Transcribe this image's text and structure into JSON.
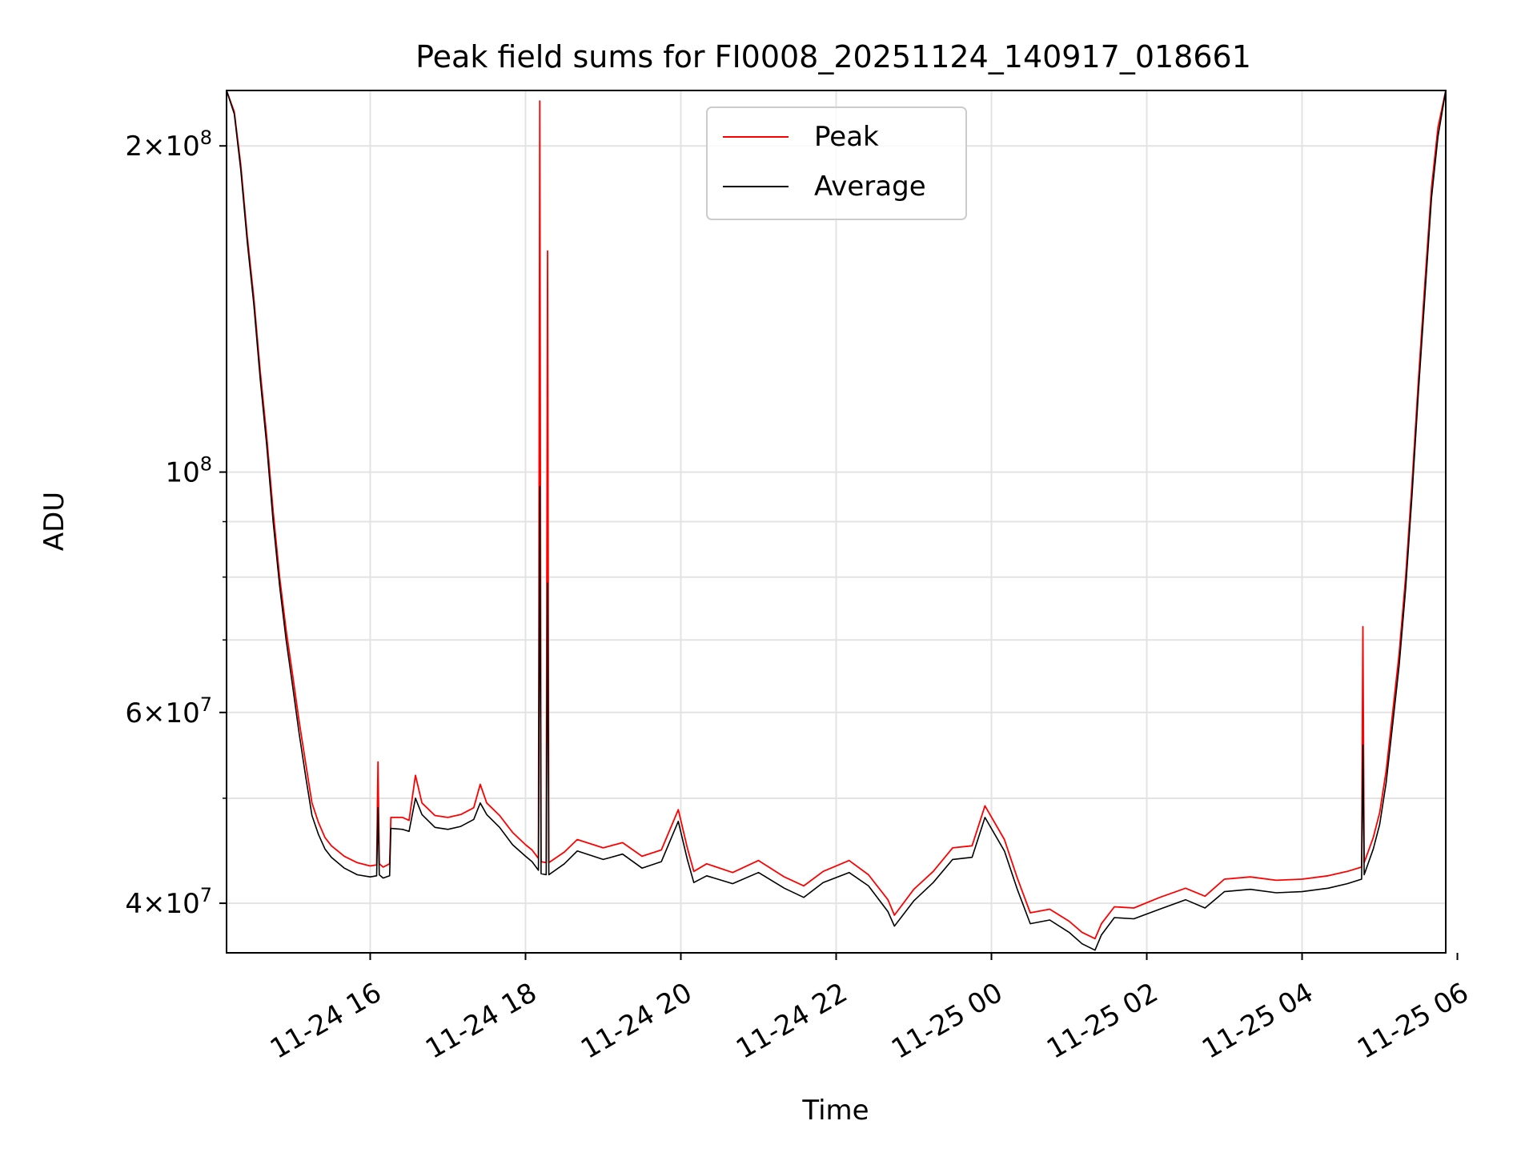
{
  "chart_data": {
    "type": "line",
    "title": "Peak field sums for FI0008_20251124_140917_018661",
    "xlabel": "Time",
    "ylabel": "ADU",
    "y_scale": "log",
    "ylim": [
      36000000,
      225000000
    ],
    "xlim": [
      "2025-11-24 14:09",
      "2025-11-25 05:51"
    ],
    "grid": true,
    "legend_position": "upper center",
    "x_ticks": [
      {
        "value": "2025-11-24 16:00",
        "label": "11-24 16"
      },
      {
        "value": "2025-11-24 18:00",
        "label": "11-24 18"
      },
      {
        "value": "2025-11-24 20:00",
        "label": "11-24 20"
      },
      {
        "value": "2025-11-24 22:00",
        "label": "11-24 22"
      },
      {
        "value": "2025-11-25 00:00",
        "label": "11-25 00"
      },
      {
        "value": "2025-11-25 02:00",
        "label": "11-25 02"
      },
      {
        "value": "2025-11-25 04:00",
        "label": "11-25 04"
      },
      {
        "value": "2025-11-25 06:00",
        "label": "11-25 06"
      }
    ],
    "y_major_ticks": [
      {
        "value": 40000000,
        "mantissa": "4",
        "base": "10",
        "exp": "7"
      },
      {
        "value": 60000000,
        "mantissa": "6",
        "base": "10",
        "exp": "7"
      },
      {
        "value": 100000000,
        "mantissa": "",
        "base": "10",
        "exp": "8"
      },
      {
        "value": 200000000,
        "mantissa": "2",
        "base": "10",
        "exp": "8"
      }
    ],
    "y_minor_grid": [
      50000000,
      70000000,
      80000000,
      90000000
    ],
    "series": [
      {
        "name": "Peak",
        "color": "#ff0000",
        "points": [
          [
            "2025-11-24 14:09",
            225000000
          ],
          [
            "2025-11-24 14:15",
            215000000
          ],
          [
            "2025-11-24 14:20",
            192000000
          ],
          [
            "2025-11-24 14:25",
            165000000
          ],
          [
            "2025-11-24 14:30",
            145000000
          ],
          [
            "2025-11-24 14:35",
            124000000
          ],
          [
            "2025-11-24 14:40",
            108000000
          ],
          [
            "2025-11-24 14:45",
            92000000
          ],
          [
            "2025-11-24 14:50",
            80000000
          ],
          [
            "2025-11-24 14:55",
            71500000
          ],
          [
            "2025-11-24 15:00",
            65000000
          ],
          [
            "2025-11-24 15:05",
            59000000
          ],
          [
            "2025-11-24 15:10",
            54000000
          ],
          [
            "2025-11-24 15:15",
            49500000
          ],
          [
            "2025-11-24 15:20",
            47500000
          ],
          [
            "2025-11-24 15:25",
            46000000
          ],
          [
            "2025-11-24 15:30",
            45200000
          ],
          [
            "2025-11-24 15:40",
            44200000
          ],
          [
            "2025-11-24 15:50",
            43600000
          ],
          [
            "2025-11-24 16:00",
            43300000
          ],
          [
            "2025-11-24 16:05",
            43400000
          ],
          [
            "2025-11-24 16:06",
            54000000
          ],
          [
            "2025-11-24 16:07",
            43500000
          ],
          [
            "2025-11-24 16:10",
            43200000
          ],
          [
            "2025-11-24 16:15",
            43500000
          ],
          [
            "2025-11-24 16:16",
            48000000
          ],
          [
            "2025-11-24 16:25",
            48000000
          ],
          [
            "2025-11-24 16:30",
            47700000
          ],
          [
            "2025-11-24 16:35",
            52500000
          ],
          [
            "2025-11-24 16:40",
            49500000
          ],
          [
            "2025-11-24 16:50",
            48200000
          ],
          [
            "2025-11-24 17:00",
            48000000
          ],
          [
            "2025-11-24 17:10",
            48300000
          ],
          [
            "2025-11-24 17:20",
            49000000
          ],
          [
            "2025-11-24 17:25",
            51500000
          ],
          [
            "2025-11-24 17:30",
            49500000
          ],
          [
            "2025-11-24 17:40",
            48200000
          ],
          [
            "2025-11-24 17:50",
            46500000
          ],
          [
            "2025-11-24 18:00",
            45300000
          ],
          [
            "2025-11-24 18:05",
            44800000
          ],
          [
            "2025-11-24 18:10",
            44000000
          ],
          [
            "2025-11-24 18:11",
            220000000
          ],
          [
            "2025-11-24 18:12",
            43700000
          ],
          [
            "2025-11-24 18:16",
            43600000
          ],
          [
            "2025-11-24 18:17",
            160000000
          ],
          [
            "2025-11-24 18:18",
            43600000
          ],
          [
            "2025-11-24 18:30",
            44600000
          ],
          [
            "2025-11-24 18:40",
            45800000
          ],
          [
            "2025-11-24 19:00",
            45000000
          ],
          [
            "2025-11-24 19:15",
            45500000
          ],
          [
            "2025-11-24 19:30",
            44200000
          ],
          [
            "2025-11-24 19:45",
            44800000
          ],
          [
            "2025-11-24 19:58",
            48800000
          ],
          [
            "2025-11-24 20:05",
            45000000
          ],
          [
            "2025-11-24 20:10",
            42800000
          ],
          [
            "2025-11-24 20:20",
            43500000
          ],
          [
            "2025-11-24 20:40",
            42700000
          ],
          [
            "2025-11-24 21:00",
            43800000
          ],
          [
            "2025-11-24 21:20",
            42300000
          ],
          [
            "2025-11-24 21:35",
            41500000
          ],
          [
            "2025-11-24 21:50",
            42800000
          ],
          [
            "2025-11-24 22:10",
            43800000
          ],
          [
            "2025-11-24 22:25",
            42500000
          ],
          [
            "2025-11-24 22:40",
            40300000
          ],
          [
            "2025-11-24 22:45",
            39000000
          ],
          [
            "2025-11-24 23:00",
            41200000
          ],
          [
            "2025-11-24 23:15",
            42800000
          ],
          [
            "2025-11-24 23:30",
            45000000
          ],
          [
            "2025-11-24 23:45",
            45200000
          ],
          [
            "2025-11-24 23:55",
            49200000
          ],
          [
            "2025-11-25 00:10",
            45800000
          ],
          [
            "2025-11-25 00:20",
            42200000
          ],
          [
            "2025-11-25 00:30",
            39200000
          ],
          [
            "2025-11-25 00:45",
            39500000
          ],
          [
            "2025-11-25 01:00",
            38500000
          ],
          [
            "2025-11-25 01:10",
            37600000
          ],
          [
            "2025-11-25 01:20",
            37100000
          ],
          [
            "2025-11-25 01:25",
            38300000
          ],
          [
            "2025-11-25 01:35",
            39700000
          ],
          [
            "2025-11-25 01:50",
            39600000
          ],
          [
            "2025-11-25 02:10",
            40500000
          ],
          [
            "2025-11-25 02:30",
            41300000
          ],
          [
            "2025-11-25 02:45",
            40600000
          ],
          [
            "2025-11-25 03:00",
            42100000
          ],
          [
            "2025-11-25 03:20",
            42300000
          ],
          [
            "2025-11-25 03:40",
            42000000
          ],
          [
            "2025-11-25 04:00",
            42100000
          ],
          [
            "2025-11-25 04:20",
            42400000
          ],
          [
            "2025-11-25 04:35",
            42800000
          ],
          [
            "2025-11-25 04:46",
            43200000
          ],
          [
            "2025-11-25 04:47",
            72000000
          ],
          [
            "2025-11-25 04:48",
            43600000
          ],
          [
            "2025-11-25 04:55",
            46000000
          ],
          [
            "2025-11-25 05:00",
            48500000
          ],
          [
            "2025-11-25 05:05",
            53000000
          ],
          [
            "2025-11-25 05:10",
            60000000
          ],
          [
            "2025-11-25 05:15",
            68000000
          ],
          [
            "2025-11-25 05:20",
            80000000
          ],
          [
            "2025-11-25 05:25",
            98000000
          ],
          [
            "2025-11-25 05:30",
            122000000
          ],
          [
            "2025-11-25 05:35",
            150000000
          ],
          [
            "2025-11-25 05:40",
            183000000
          ],
          [
            "2025-11-25 05:45",
            208000000
          ],
          [
            "2025-11-25 05:51",
            225000000
          ]
        ]
      },
      {
        "name": "Average",
        "color": "#000000",
        "points": [
          [
            "2025-11-24 14:09",
            225000000
          ],
          [
            "2025-11-24 14:15",
            214000000
          ],
          [
            "2025-11-24 14:20",
            190000000
          ],
          [
            "2025-11-24 14:25",
            163000000
          ],
          [
            "2025-11-24 14:30",
            143000000
          ],
          [
            "2025-11-24 14:35",
            122000000
          ],
          [
            "2025-11-24 14:40",
            106000000
          ],
          [
            "2025-11-24 14:45",
            90000000
          ],
          [
            "2025-11-24 14:50",
            78500000
          ],
          [
            "2025-11-24 14:55",
            70000000
          ],
          [
            "2025-11-24 15:00",
            63500000
          ],
          [
            "2025-11-24 15:05",
            57500000
          ],
          [
            "2025-11-24 15:10",
            52500000
          ],
          [
            "2025-11-24 15:15",
            48200000
          ],
          [
            "2025-11-24 15:20",
            46300000
          ],
          [
            "2025-11-24 15:25",
            44900000
          ],
          [
            "2025-11-24 15:30",
            44100000
          ],
          [
            "2025-11-24 15:40",
            43100000
          ],
          [
            "2025-11-24 15:50",
            42500000
          ],
          [
            "2025-11-24 16:00",
            42300000
          ],
          [
            "2025-11-24 16:05",
            42400000
          ],
          [
            "2025-11-24 16:06",
            49000000
          ],
          [
            "2025-11-24 16:07",
            42500000
          ],
          [
            "2025-11-24 16:10",
            42200000
          ],
          [
            "2025-11-24 16:15",
            42400000
          ],
          [
            "2025-11-24 16:16",
            46900000
          ],
          [
            "2025-11-24 16:25",
            46800000
          ],
          [
            "2025-11-24 16:30",
            46600000
          ],
          [
            "2025-11-24 16:35",
            50000000
          ],
          [
            "2025-11-24 16:40",
            48300000
          ],
          [
            "2025-11-24 16:50",
            47000000
          ],
          [
            "2025-11-24 17:00",
            46800000
          ],
          [
            "2025-11-24 17:10",
            47100000
          ],
          [
            "2025-11-24 17:20",
            47800000
          ],
          [
            "2025-11-24 17:25",
            49500000
          ],
          [
            "2025-11-24 17:30",
            48300000
          ],
          [
            "2025-11-24 17:40",
            47000000
          ],
          [
            "2025-11-24 17:50",
            45300000
          ],
          [
            "2025-11-24 18:00",
            44200000
          ],
          [
            "2025-11-24 18:05",
            43700000
          ],
          [
            "2025-11-24 18:10",
            42900000
          ],
          [
            "2025-11-24 18:11",
            97000000
          ],
          [
            "2025-11-24 18:12",
            42600000
          ],
          [
            "2025-11-24 18:16",
            42500000
          ],
          [
            "2025-11-24 18:17",
            79000000
          ],
          [
            "2025-11-24 18:18",
            42500000
          ],
          [
            "2025-11-24 18:30",
            43500000
          ],
          [
            "2025-11-24 18:40",
            44700000
          ],
          [
            "2025-11-24 19:00",
            43900000
          ],
          [
            "2025-11-24 19:15",
            44400000
          ],
          [
            "2025-11-24 19:30",
            43100000
          ],
          [
            "2025-11-24 19:45",
            43700000
          ],
          [
            "2025-11-24 19:58",
            47600000
          ],
          [
            "2025-11-24 20:05",
            43900000
          ],
          [
            "2025-11-24 20:10",
            41800000
          ],
          [
            "2025-11-24 20:20",
            42400000
          ],
          [
            "2025-11-24 20:40",
            41700000
          ],
          [
            "2025-11-24 21:00",
            42700000
          ],
          [
            "2025-11-24 21:20",
            41300000
          ],
          [
            "2025-11-24 21:35",
            40500000
          ],
          [
            "2025-11-24 21:50",
            41800000
          ],
          [
            "2025-11-24 22:10",
            42700000
          ],
          [
            "2025-11-24 22:25",
            41500000
          ],
          [
            "2025-11-24 22:40",
            39300000
          ],
          [
            "2025-11-24 22:45",
            38100000
          ],
          [
            "2025-11-24 23:00",
            40200000
          ],
          [
            "2025-11-24 23:15",
            41800000
          ],
          [
            "2025-11-24 23:30",
            43900000
          ],
          [
            "2025-11-24 23:45",
            44100000
          ],
          [
            "2025-11-24 23:55",
            48000000
          ],
          [
            "2025-11-25 00:10",
            44700000
          ],
          [
            "2025-11-25 00:20",
            41200000
          ],
          [
            "2025-11-25 00:30",
            38300000
          ],
          [
            "2025-11-25 00:45",
            38600000
          ],
          [
            "2025-11-25 01:00",
            37600000
          ],
          [
            "2025-11-25 01:10",
            36700000
          ],
          [
            "2025-11-25 01:20",
            36200000
          ],
          [
            "2025-11-25 01:25",
            37400000
          ],
          [
            "2025-11-25 01:35",
            38800000
          ],
          [
            "2025-11-25 01:50",
            38700000
          ],
          [
            "2025-11-25 02:10",
            39500000
          ],
          [
            "2025-11-25 02:30",
            40300000
          ],
          [
            "2025-11-25 02:45",
            39600000
          ],
          [
            "2025-11-25 03:00",
            41000000
          ],
          [
            "2025-11-25 03:20",
            41200000
          ],
          [
            "2025-11-25 03:40",
            40900000
          ],
          [
            "2025-11-25 04:00",
            41000000
          ],
          [
            "2025-11-25 04:20",
            41300000
          ],
          [
            "2025-11-25 04:35",
            41700000
          ],
          [
            "2025-11-25 04:46",
            42100000
          ],
          [
            "2025-11-25 04:47",
            56000000
          ],
          [
            "2025-11-25 04:48",
            42500000
          ],
          [
            "2025-11-25 04:55",
            44900000
          ],
          [
            "2025-11-25 05:00",
            47300000
          ],
          [
            "2025-11-25 05:05",
            51700000
          ],
          [
            "2025-11-25 05:10",
            58500000
          ],
          [
            "2025-11-25 05:15",
            66300000
          ],
          [
            "2025-11-25 05:20",
            78000000
          ],
          [
            "2025-11-25 05:25",
            95500000
          ],
          [
            "2025-11-25 05:30",
            119000000
          ],
          [
            "2025-11-25 05:35",
            146000000
          ],
          [
            "2025-11-25 05:40",
            179000000
          ],
          [
            "2025-11-25 05:45",
            204000000
          ],
          [
            "2025-11-25 05:51",
            225000000
          ]
        ]
      }
    ]
  }
}
